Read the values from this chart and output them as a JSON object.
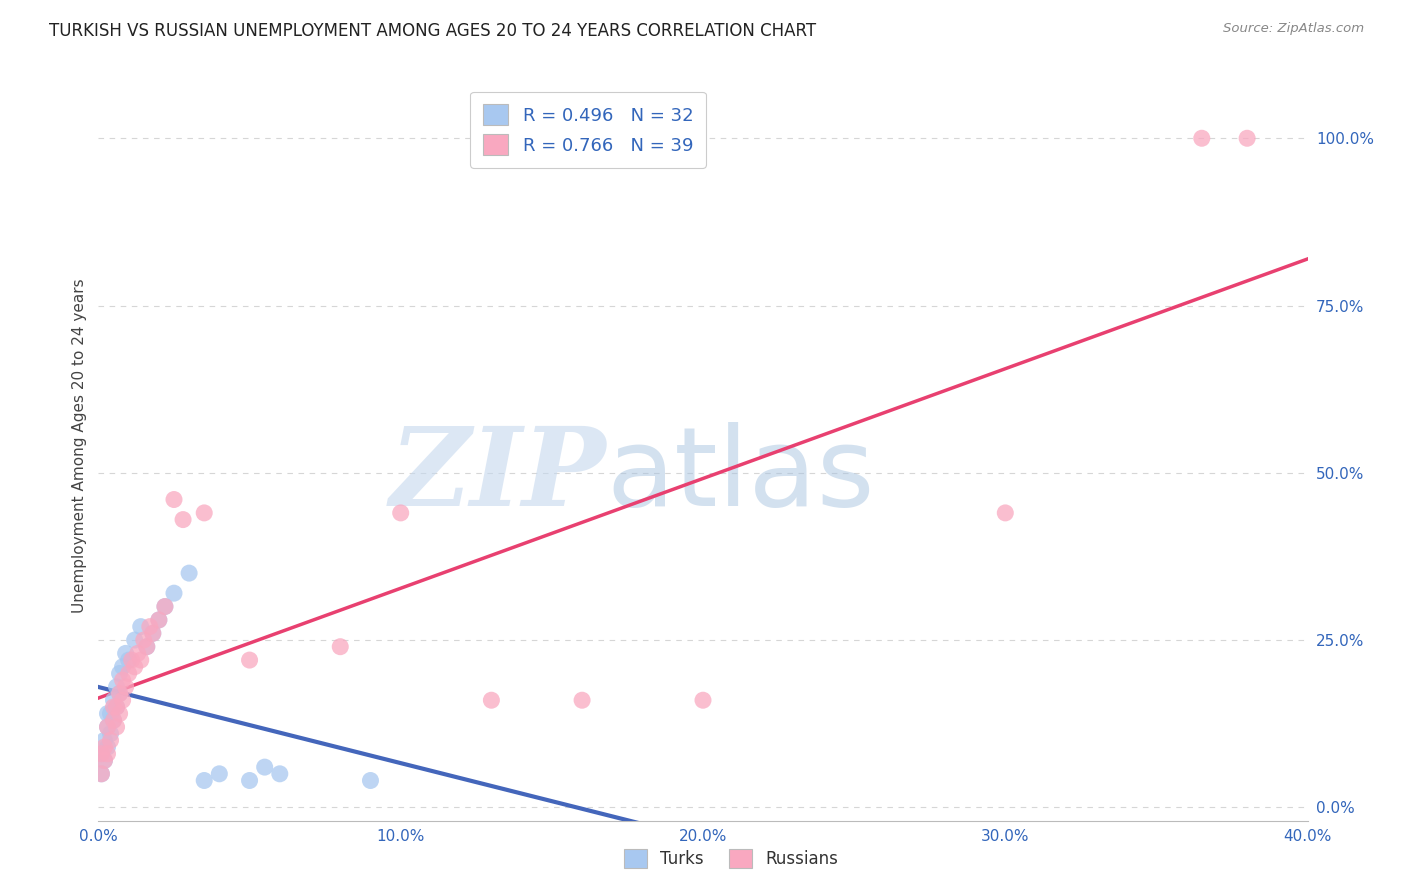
{
  "title": "TURKISH VS RUSSIAN UNEMPLOYMENT AMONG AGES 20 TO 24 YEARS CORRELATION CHART",
  "source": "Source: ZipAtlas.com",
  "ylabel": "Unemployment Among Ages 20 to 24 years",
  "turks_R": 0.496,
  "turks_N": 32,
  "russians_R": 0.766,
  "russians_N": 39,
  "turks_color": "#A8C8F0",
  "russians_color": "#F9A8C0",
  "turks_line_color": "#4466BB",
  "russians_line_color": "#E84070",
  "ref_line_color": "#AAAAAA",
  "xlim": [
    0.0,
    0.4
  ],
  "ylim": [
    -0.02,
    1.1
  ],
  "xtick_labels": [
    "0.0%",
    "10.0%",
    "20.0%",
    "30.0%",
    "40.0%"
  ],
  "xtick_vals": [
    0.0,
    0.1,
    0.2,
    0.3,
    0.4
  ],
  "ytick_labels": [
    "0.0%",
    "25.0%",
    "50.0%",
    "75.0%",
    "100.0%"
  ],
  "ytick_vals": [
    0.0,
    0.25,
    0.5,
    0.75,
    1.0
  ],
  "turks_x": [
    0.001,
    0.001,
    0.002,
    0.002,
    0.002,
    0.003,
    0.003,
    0.003,
    0.004,
    0.004,
    0.005,
    0.005,
    0.005,
    0.006,
    0.006,
    0.007,
    0.007,
    0.008,
    0.009,
    0.01,
    0.012,
    0.013,
    0.015,
    0.018,
    0.02,
    0.022,
    0.025,
    0.028,
    0.035,
    0.04,
    0.045,
    0.06
  ],
  "turks_y": [
    0.04,
    0.06,
    0.07,
    0.09,
    0.11,
    0.08,
    0.1,
    0.13,
    0.12,
    0.14,
    0.11,
    0.13,
    0.15,
    0.16,
    0.18,
    0.14,
    0.17,
    0.2,
    0.22,
    0.23,
    0.25,
    0.27,
    0.26,
    0.28,
    0.3,
    0.32,
    0.35,
    0.3,
    0.04,
    0.05,
    0.06,
    0.04
  ],
  "russians_x": [
    0.001,
    0.001,
    0.002,
    0.002,
    0.003,
    0.003,
    0.004,
    0.004,
    0.005,
    0.005,
    0.006,
    0.006,
    0.007,
    0.007,
    0.008,
    0.008,
    0.009,
    0.01,
    0.011,
    0.012,
    0.013,
    0.015,
    0.016,
    0.018,
    0.02,
    0.022,
    0.025,
    0.03,
    0.035,
    0.04,
    0.05,
    0.08,
    0.09,
    0.1,
    0.15,
    0.2,
    0.3,
    0.37,
    0.38
  ],
  "russians_y": [
    0.05,
    0.07,
    0.06,
    0.09,
    0.08,
    0.11,
    0.1,
    0.13,
    0.12,
    0.14,
    0.13,
    0.15,
    0.16,
    0.18,
    0.17,
    0.2,
    0.22,
    0.21,
    0.23,
    0.24,
    0.25,
    0.27,
    0.26,
    0.28,
    0.45,
    0.44,
    0.23,
    0.24,
    0.25,
    0.24,
    0.23,
    0.22,
    0.24,
    0.43,
    0.15,
    0.16,
    0.43,
    1.0,
    1.0
  ],
  "background_color": "#FFFFFF",
  "grid_color": "#CCCCCC"
}
